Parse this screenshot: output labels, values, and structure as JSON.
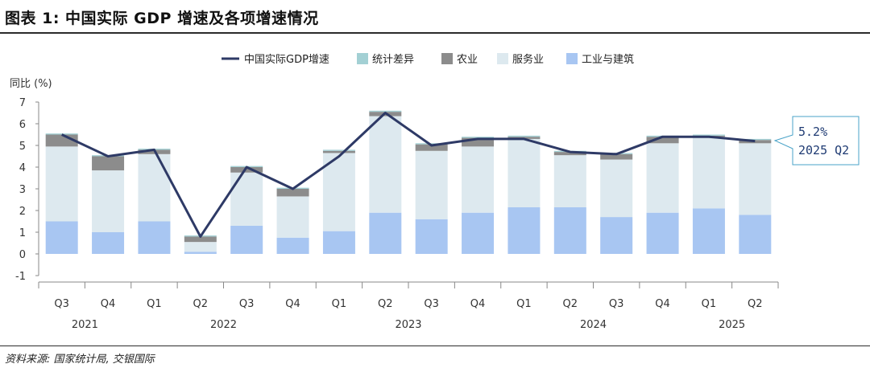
{
  "title": "图表 1: 中国实际 GDP 增速及各项增速情况",
  "source": "资料来源: 国家统计局, 交银国际",
  "colors": {
    "line": "#2e3a66",
    "statistical_diff": "#a3d0d4",
    "agriculture": "#8c8c8c",
    "services": "#dde9ef",
    "industry": "#a8c6f2"
  },
  "chart_data": {
    "type": "bar",
    "stacked": true,
    "ylabel": "同比 (%)",
    "ylim": [
      -1,
      7
    ],
    "yticks": [
      -1,
      0,
      1,
      2,
      3,
      4,
      5,
      6,
      7
    ],
    "legend_position": "top",
    "categories": [
      "Q3",
      "Q4",
      "Q1",
      "Q2",
      "Q3",
      "Q4",
      "Q1",
      "Q2",
      "Q3",
      "Q4",
      "Q1",
      "Q2",
      "Q3",
      "Q4",
      "Q1",
      "Q2"
    ],
    "years": [
      {
        "label": "2021",
        "start": 0,
        "end": 1
      },
      {
        "label": "2022",
        "start": 2,
        "end": 5
      },
      {
        "label": "2023",
        "start": 6,
        "end": 9
      },
      {
        "label": "2024",
        "start": 10,
        "end": 13
      },
      {
        "label": "2025",
        "start": 14,
        "end": 15
      }
    ],
    "series": [
      {
        "name": "中国实际GDP增速",
        "kind": "line",
        "values": [
          5.5,
          4.5,
          4.8,
          0.8,
          4.0,
          3.0,
          4.5,
          6.5,
          5.0,
          5.3,
          5.3,
          4.7,
          4.6,
          5.4,
          5.4,
          5.2
        ]
      },
      {
        "name": "统计差异",
        "kind": "bar",
        "values": [
          0.05,
          0.05,
          0.05,
          0.05,
          0.05,
          0.05,
          0.05,
          0.05,
          0.05,
          0.05,
          0.05,
          0.05,
          0.05,
          0.05,
          0.05,
          0.05
        ]
      },
      {
        "name": "农业",
        "kind": "bar",
        "values": [
          0.55,
          0.65,
          0.2,
          0.25,
          0.25,
          0.35,
          0.1,
          0.2,
          0.3,
          0.4,
          0.1,
          0.15,
          0.25,
          0.3,
          0.05,
          0.15
        ]
      },
      {
        "name": "服务业",
        "kind": "bar",
        "values": [
          3.45,
          2.85,
          3.1,
          0.45,
          2.45,
          1.9,
          3.6,
          4.45,
          3.15,
          3.05,
          3.15,
          2.4,
          2.65,
          3.2,
          3.3,
          3.3
        ]
      },
      {
        "name": "工业与建筑",
        "kind": "bar",
        "values": [
          1.5,
          1.0,
          1.5,
          0.1,
          1.3,
          0.75,
          1.05,
          1.9,
          1.6,
          1.9,
          2.15,
          2.15,
          1.7,
          1.9,
          2.1,
          1.8
        ]
      }
    ],
    "annotation": {
      "value": "5.2%",
      "period": "2025 Q2"
    }
  }
}
